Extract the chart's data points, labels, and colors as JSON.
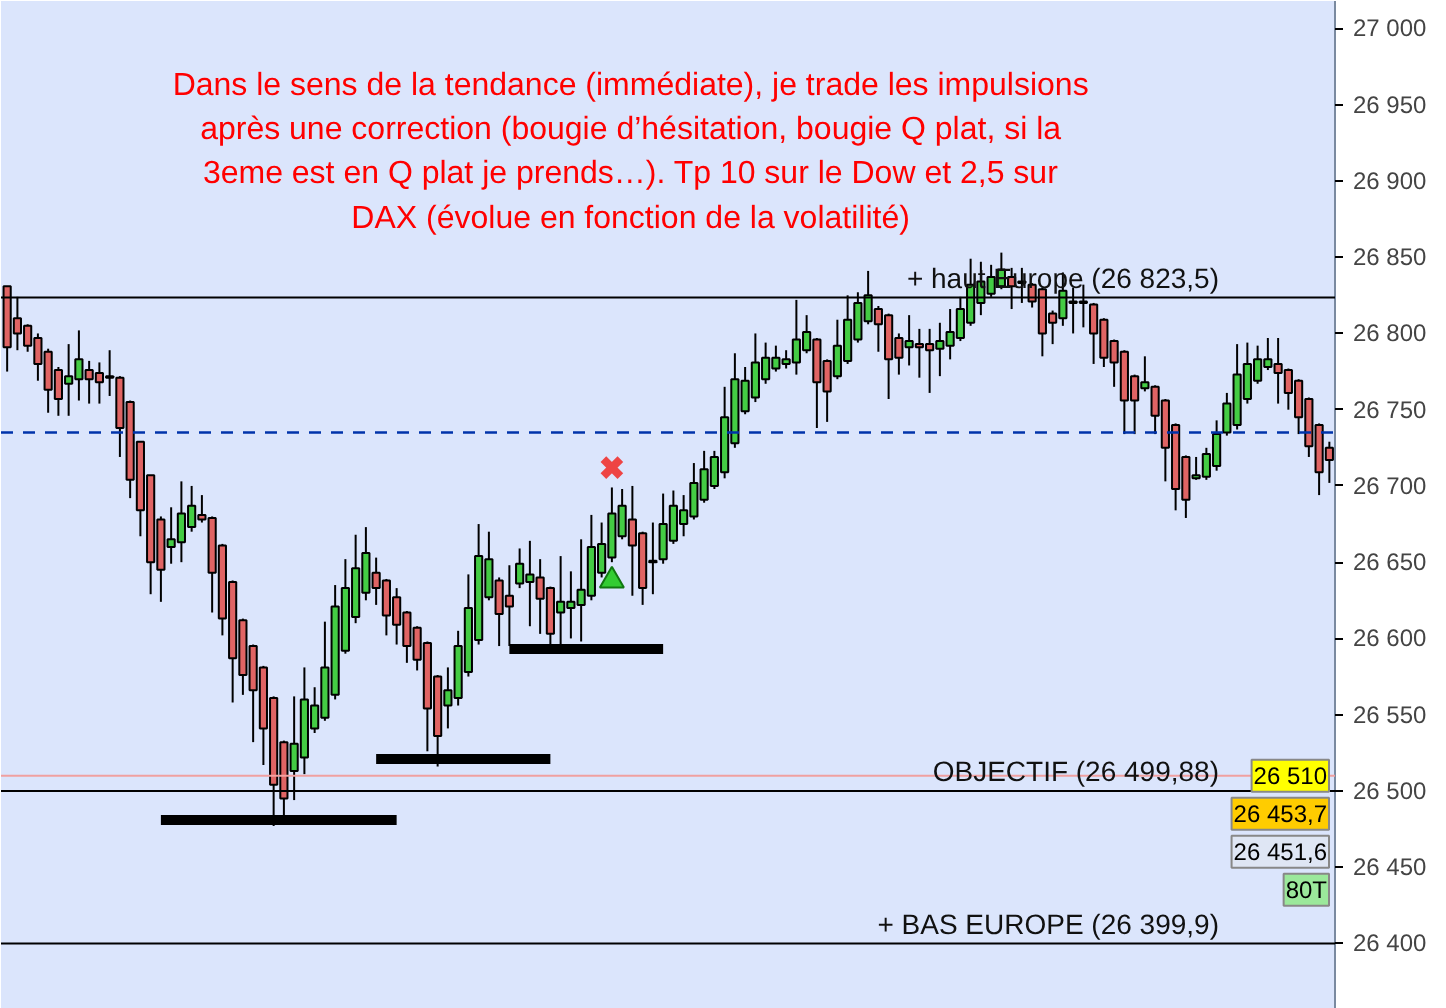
{
  "chart_data": {
    "type": "candlestick",
    "annotations": [
      "Dans le sens de la tendance (immédiate), je trade les impulsions\naprès une correction (bougie d’hésitation, bougie Q plat, si la\n3eme est en Q plat je prends…). Tp 10 sur le Dow et 2,5 sur\nDAX (évolue en fonction de la volatilité)",
      {
        "text": "26 510",
        "y": 26510
      },
      "26 453,7",
      "26 451,6",
      "80T"
    ],
    "categories": [
      null,
      null,
      null,
      null,
      null,
      null,
      null,
      null,
      null,
      null,
      null,
      null,
      null,
      null,
      null,
      null,
      null,
      null,
      null,
      null,
      null,
      null,
      null,
      null,
      null,
      null,
      null,
      null,
      null,
      null,
      null,
      null,
      null,
      null,
      null,
      null,
      null,
      null,
      null,
      null,
      null,
      null,
      null,
      null,
      null,
      null,
      null,
      null,
      null,
      null,
      null,
      null,
      null,
      null,
      null,
      null,
      null,
      null,
      null,
      null,
      null,
      null,
      null,
      null,
      null,
      null,
      null,
      null,
      null,
      null,
      null,
      null,
      null,
      null,
      null,
      null,
      null,
      null,
      null,
      null,
      null,
      null,
      null,
      null,
      null,
      null,
      null,
      null,
      null,
      null,
      null,
      null,
      null,
      null,
      null,
      null,
      null,
      null,
      null,
      null,
      null,
      null,
      null,
      null,
      null,
      null,
      null,
      null,
      null,
      null,
      null,
      null,
      null,
      null,
      null,
      null,
      null,
      null,
      null,
      null,
      null,
      null,
      null,
      null,
      null,
      null,
      null,
      null,
      null,
      null
    ],
    "ohlc": [
      [
        26831,
        26831,
        26775,
        26791
      ],
      [
        26810,
        26824,
        26789,
        26800
      ],
      [
        26805,
        26806,
        26788,
        26792
      ],
      [
        26797,
        26800,
        26769,
        26780
      ],
      [
        26788,
        26790,
        26748,
        26763
      ],
      [
        26776,
        26778,
        26746,
        26757
      ],
      [
        26767,
        26793,
        26746,
        26772
      ],
      [
        26770,
        26802,
        26756,
        26783
      ],
      [
        26776,
        26782,
        26754,
        26770
      ],
      [
        26774,
        26781,
        26754,
        26768
      ],
      [
        26772,
        26789,
        26759,
        26771
      ],
      [
        26771,
        26772,
        26719,
        26738
      ],
      [
        26755,
        26756,
        26692,
        26704
      ],
      [
        26729,
        26729,
        26667,
        26684
      ],
      [
        26707,
        26707,
        26629,
        26650
      ],
      [
        26678,
        26680,
        26624,
        26645
      ],
      [
        26660,
        26686,
        26649,
        26665
      ],
      [
        26663,
        26703,
        26650,
        26682
      ],
      [
        26673,
        26700,
        26670,
        26687
      ],
      [
        26681,
        26694,
        26676,
        26678
      ],
      [
        26679,
        26680,
        26617,
        26643
      ],
      [
        26661,
        26662,
        26602,
        26613
      ],
      [
        26637,
        26638,
        26558,
        26587
      ],
      [
        26612,
        26613,
        26563,
        26576
      ],
      [
        26595,
        26596,
        26532,
        26566
      ],
      [
        26581,
        26582,
        26517,
        26541
      ],
      [
        26561,
        26562,
        26477,
        26504
      ],
      [
        26532,
        26533,
        26483,
        26495
      ],
      [
        26513,
        26562,
        26494,
        26531
      ],
      [
        26522,
        26581,
        26511,
        26560
      ],
      [
        26541,
        26568,
        26538,
        26556
      ],
      [
        26548,
        26611,
        26546,
        26581
      ],
      [
        26563,
        26635,
        26560,
        26621
      ],
      [
        26592,
        26652,
        26590,
        26633
      ],
      [
        26614,
        26668,
        26610,
        26646
      ],
      [
        26630,
        26673,
        26625,
        26656
      ],
      [
        26643,
        26653,
        26622,
        26633
      ],
      [
        26638,
        26639,
        26602,
        26615
      ],
      [
        26627,
        26633,
        26596,
        26609
      ],
      [
        26617,
        26618,
        26584,
        26595
      ],
      [
        26607,
        26608,
        26579,
        26586
      ],
      [
        26597,
        26598,
        26526,
        26554
      ],
      [
        26575,
        26576,
        26516,
        26536
      ],
      [
        26556,
        26581,
        26541,
        26566
      ],
      [
        26561,
        26605,
        26556,
        26595
      ],
      [
        26578,
        26642,
        26575,
        26620
      ],
      [
        26599,
        26675,
        26596,
        26654
      ],
      [
        26627,
        26670,
        26625,
        26652
      ],
      [
        26638,
        26640,
        26595,
        26616
      ],
      [
        26628,
        26648,
        26595,
        26621
      ],
      [
        26636,
        26659,
        26633,
        26649
      ],
      [
        26637,
        26664,
        26608,
        26642
      ],
      [
        26640,
        26652,
        26603,
        26626
      ],
      [
        26633,
        26634,
        26596,
        26603
      ],
      [
        26617,
        26654,
        26596,
        26624
      ],
      [
        26620,
        26644,
        26600,
        26624
      ],
      [
        26622,
        26665,
        26598,
        26632
      ],
      [
        26628,
        26681,
        26625,
        26660
      ],
      [
        26643,
        26676,
        26640,
        26662
      ],
      [
        26653,
        26699,
        26650,
        26682
      ],
      [
        26667,
        26698,
        26665,
        26687
      ],
      [
        26678,
        26700,
        26628,
        26661
      ],
      [
        26669,
        26670,
        26622,
        26633
      ],
      [
        26651,
        26676,
        26629,
        26650
      ],
      [
        26652,
        26695,
        26649,
        26675
      ],
      [
        26664,
        26697,
        26662,
        26687
      ],
      [
        26675,
        26694,
        26667,
        26684
      ],
      [
        26680,
        26715,
        26678,
        26702
      ],
      [
        26691,
        26723,
        26689,
        26711
      ],
      [
        26700,
        26723,
        26698,
        26719
      ],
      [
        26709,
        26765,
        26705,
        26745
      ],
      [
        26728,
        26787,
        26725,
        26770
      ],
      [
        26749,
        26778,
        26747,
        26769
      ],
      [
        26758,
        26800,
        26755,
        26781
      ],
      [
        26770,
        26794,
        26767,
        26784
      ],
      [
        26777,
        26792,
        26775,
        26784
      ],
      [
        26780,
        26789,
        26777,
        26783
      ],
      [
        26781,
        26822,
        26773,
        26796
      ],
      [
        26789,
        26812,
        26787,
        26801
      ],
      [
        26796,
        26797,
        26738,
        26768
      ],
      [
        26782,
        26783,
        26742,
        26762
      ],
      [
        26772,
        26809,
        26770,
        26792
      ],
      [
        26782,
        26825,
        26780,
        26809
      ],
      [
        26796,
        26827,
        26794,
        26820
      ],
      [
        26808,
        26841,
        26806,
        26825
      ],
      [
        26816,
        26818,
        26788,
        26806
      ],
      [
        26812,
        26813,
        26757,
        26783
      ],
      [
        26797,
        26800,
        26773,
        26784
      ],
      [
        26791,
        26812,
        26779,
        26795
      ],
      [
        26793,
        26803,
        26771,
        26791
      ],
      [
        26793,
        26803,
        26761,
        26789
      ],
      [
        26790,
        26807,
        26772,
        26795
      ],
      [
        26792,
        26816,
        26783,
        26801
      ],
      [
        26797,
        26824,
        26795,
        26816
      ],
      [
        26807,
        26849,
        26805,
        26832
      ],
      [
        26820,
        26847,
        26812,
        26834
      ],
      [
        26826,
        26845,
        26824,
        26837
      ],
      [
        26831,
        26853,
        26829,
        26842
      ],
      [
        26837,
        26843,
        26816,
        26831
      ],
      [
        26834,
        26843,
        26820,
        26833
      ],
      [
        26832,
        26833,
        26817,
        26821
      ],
      [
        26829,
        26830,
        26785,
        26800
      ],
      [
        26813,
        26815,
        26793,
        26807
      ],
      [
        26810,
        26840,
        26805,
        26828
      ],
      [
        26821,
        26830,
        26800,
        26820
      ],
      [
        26821,
        26832,
        26804,
        26820
      ],
      [
        26819,
        26820,
        26780,
        26800
      ],
      [
        26809,
        26810,
        26778,
        26784
      ],
      [
        26795,
        26796,
        26765,
        26781
      ],
      [
        26788,
        26789,
        26734,
        26756
      ],
      [
        26772,
        26773,
        26734,
        26756
      ],
      [
        26764,
        26785,
        26762,
        26768
      ],
      [
        26765,
        26766,
        26734,
        26746
      ],
      [
        26756,
        26757,
        26703,
        26725
      ],
      [
        26740,
        26741,
        26684,
        26698
      ],
      [
        26719,
        26720,
        26679,
        26691
      ],
      [
        26705,
        26719,
        26704,
        26707
      ],
      [
        26706,
        26725,
        26704,
        26721
      ],
      [
        26713,
        26743,
        26710,
        26734
      ],
      [
        26735,
        26761,
        26733,
        26754
      ],
      [
        26740,
        26793,
        26737,
        26773
      ],
      [
        26757,
        26794,
        26754,
        26780
      ],
      [
        26769,
        26792,
        26767,
        26783
      ],
      [
        26778,
        26797,
        26776,
        26783
      ],
      [
        26780,
        26797,
        26754,
        26774
      ],
      [
        26776,
        26777,
        26750,
        26761
      ],
      [
        26769,
        26770,
        26734,
        26745
      ],
      [
        26757,
        26758,
        26719,
        26726
      ],
      [
        26740,
        26741,
        26694,
        26709
      ],
      [
        26725,
        26729,
        26702,
        26717
      ]
    ],
    "series": [
      {
        "type": "line",
        "color": "#000000",
        "values": [
          null,
          null,
          null,
          null,
          null,
          null,
          null,
          null,
          null,
          null,
          null,
          null,
          null,
          null,
          null,
          26481,
          26481,
          26481,
          26481,
          26481,
          26481,
          26481,
          26481,
          26481,
          26481,
          26481,
          26481,
          26481,
          26481,
          26481,
          26481,
          26481,
          26481,
          26481,
          26481,
          26481,
          26481,
          26481,
          26481,
          null,
          null,
          null,
          null,
          null,
          null,
          null,
          null,
          null,
          null,
          null,
          null,
          null,
          null,
          null,
          null,
          null,
          null,
          null,
          null,
          null,
          null,
          null,
          null,
          null,
          null,
          null,
          null,
          null,
          null,
          null,
          null,
          null,
          null,
          null,
          null,
          null,
          null,
          null,
          null,
          null,
          null,
          null,
          null,
          null,
          null,
          null,
          null,
          null,
          null,
          null,
          null,
          null,
          null,
          null,
          null,
          null,
          null,
          null,
          null,
          null,
          null,
          null,
          null,
          null,
          null,
          null,
          null,
          null,
          null,
          null,
          null,
          null,
          null,
          null,
          null,
          null,
          null,
          null,
          null,
          null,
          null,
          null,
          null,
          null,
          null,
          null,
          null,
          null,
          null,
          null
        ]
      },
      {
        "type": "line",
        "color": "#000000",
        "values": [
          null,
          null,
          null,
          null,
          null,
          null,
          null,
          null,
          null,
          null,
          null,
          null,
          null,
          null,
          null,
          null,
          null,
          null,
          null,
          null,
          null,
          null,
          null,
          null,
          null,
          null,
          null,
          null,
          null,
          null,
          null,
          null,
          null,
          null,
          null,
          null,
          26521,
          26521,
          26521,
          26521,
          26521,
          26521,
          26521,
          26521,
          26521,
          26521,
          26521,
          26521,
          26521,
          26521,
          26521,
          26521,
          26521,
          26521,
          null,
          null,
          null,
          null,
          null,
          null,
          null,
          null,
          null,
          null,
          null,
          null,
          null,
          null,
          null,
          null,
          null,
          null,
          null,
          null,
          null,
          null,
          null,
          null,
          null,
          null,
          null,
          null,
          null,
          null,
          null,
          null,
          null,
          null,
          null,
          null,
          null,
          null,
          null,
          null,
          null,
          null,
          null,
          null,
          null,
          null,
          null,
          null,
          null,
          null,
          null,
          null,
          null,
          null,
          null,
          null,
          null,
          null,
          null,
          null,
          null,
          null,
          null,
          null,
          null,
          null,
          null,
          null,
          null,
          null,
          null,
          null,
          null,
          null,
          null,
          null
        ]
      },
      {
        "type": "line",
        "color": "#000000",
        "values": [
          null,
          null,
          null,
          null,
          null,
          null,
          null,
          null,
          null,
          null,
          null,
          null,
          null,
          null,
          null,
          null,
          null,
          null,
          null,
          null,
          null,
          null,
          null,
          null,
          null,
          null,
          null,
          null,
          null,
          null,
          null,
          null,
          null,
          null,
          null,
          null,
          null,
          null,
          null,
          null,
          null,
          null,
          null,
          null,
          null,
          null,
          null,
          null,
          null,
          26593,
          26593,
          26593,
          26593,
          26593,
          26593,
          26593,
          26593,
          26593,
          26593,
          26593,
          26593,
          26593,
          26593,
          26593,
          26593,
          null,
          null,
          null,
          null,
          null,
          null,
          null,
          null,
          null,
          null,
          null,
          null,
          null,
          null,
          null,
          null,
          null,
          null,
          null,
          null,
          null,
          null,
          null,
          null,
          null,
          null,
          null,
          null,
          null,
          null,
          null,
          null,
          null,
          null,
          null,
          null,
          null,
          null,
          null,
          null,
          null,
          null,
          null,
          null,
          null,
          null,
          null,
          null,
          null,
          null,
          null,
          null,
          null,
          null,
          null,
          null,
          null,
          null,
          null,
          null,
          null,
          null,
          null,
          null,
          null
        ]
      },
      {
        "type": "scatter",
        "marker": "cross",
        "color": "#ee4444",
        "values": [
          null,
          null,
          null,
          null,
          null,
          null,
          null,
          null,
          null,
          null,
          null,
          null,
          null,
          null,
          null,
          null,
          null,
          null,
          null,
          null,
          null,
          null,
          null,
          null,
          null,
          null,
          null,
          null,
          null,
          null,
          null,
          null,
          null,
          null,
          null,
          null,
          null,
          null,
          null,
          null,
          null,
          null,
          null,
          null,
          null,
          null,
          null,
          null,
          null,
          null,
          null,
          null,
          null,
          null,
          null,
          null,
          null,
          null,
          null,
          26712,
          null,
          null,
          null,
          null,
          null,
          null,
          null,
          null,
          null,
          null,
          null,
          null,
          null,
          null,
          null,
          null,
          null,
          null,
          null,
          null,
          null,
          null,
          null,
          null,
          null,
          null,
          null,
          null,
          null,
          null,
          null,
          null,
          null,
          null,
          null,
          null,
          null,
          null,
          null,
          null,
          null,
          null,
          null,
          null,
          null,
          null,
          null,
          null,
          null,
          null,
          null,
          null,
          null,
          null,
          null,
          null,
          null,
          null,
          null,
          null,
          null,
          null,
          null,
          null,
          null,
          null,
          null,
          null,
          null,
          null
        ]
      },
      {
        "type": "scatter",
        "marker": "triangle",
        "color": "#33cc33",
        "values": [
          null,
          null,
          null,
          null,
          null,
          null,
          null,
          null,
          null,
          null,
          null,
          null,
          null,
          null,
          null,
          null,
          null,
          null,
          null,
          null,
          null,
          null,
          null,
          null,
          null,
          null,
          null,
          null,
          null,
          null,
          null,
          null,
          null,
          null,
          null,
          null,
          null,
          null,
          null,
          null,
          null,
          null,
          null,
          null,
          null,
          null,
          null,
          null,
          null,
          null,
          null,
          null,
          null,
          null,
          null,
          null,
          null,
          null,
          null,
          26638,
          null,
          null,
          null,
          null,
          null,
          null,
          null,
          null,
          null,
          null,
          null,
          null,
          null,
          null,
          null,
          null,
          null,
          null,
          null,
          null,
          null,
          null,
          null,
          null,
          null,
          null,
          null,
          null,
          null,
          null,
          null,
          null,
          null,
          null,
          null,
          null,
          null,
          null,
          null,
          null,
          null,
          null,
          null,
          null,
          null,
          null,
          null,
          null,
          null,
          null,
          null,
          null,
          null,
          null,
          null,
          null,
          null,
          null,
          null,
          null,
          null,
          null,
          null,
          null,
          null,
          null,
          null,
          null,
          null,
          null
        ]
      }
    ],
    "ref_lines": [
      {
        "axis": "y",
        "value": 26823.5,
        "label": "+ haut Europe (26 823,5)",
        "color": "#000000"
      },
      {
        "axis": "y",
        "value": 26735,
        "color": "#0033aa",
        "line_style": "dashed"
      },
      {
        "axis": "y",
        "value": 26510,
        "color": "#f0a0a0"
      },
      {
        "axis": "y",
        "value": 26499.88,
        "label": "OBJECTIF (26 499,88)",
        "color": "#000000"
      },
      {
        "axis": "y",
        "value": 26399.9,
        "label": "+ BAS EUROPE (26 399,9)",
        "color": "#000000"
      }
    ],
    "ylim": [
      26357,
      27018
    ],
    "yticks": [
      {
        "value": 26400,
        "label": "26 400"
      },
      {
        "value": 26450,
        "label": "26 450"
      },
      {
        "value": 26500,
        "label": "26 500"
      },
      {
        "value": 26550,
        "label": "26 550"
      },
      {
        "value": 26600,
        "label": "26 600"
      },
      {
        "value": 26650,
        "label": "26 650"
      },
      {
        "value": 26700,
        "label": "26 700"
      },
      {
        "value": 26750,
        "label": "26 750"
      },
      {
        "value": 26800,
        "label": "26 800"
      },
      {
        "value": 26850,
        "label": "26 850"
      },
      {
        "value": 26900,
        "label": "26 900"
      },
      {
        "value": 26950,
        "label": "26 950"
      },
      {
        "value": 27000,
        "label": "27 000"
      }
    ],
    "tick_labels": "y",
    "grid": false
  }
}
